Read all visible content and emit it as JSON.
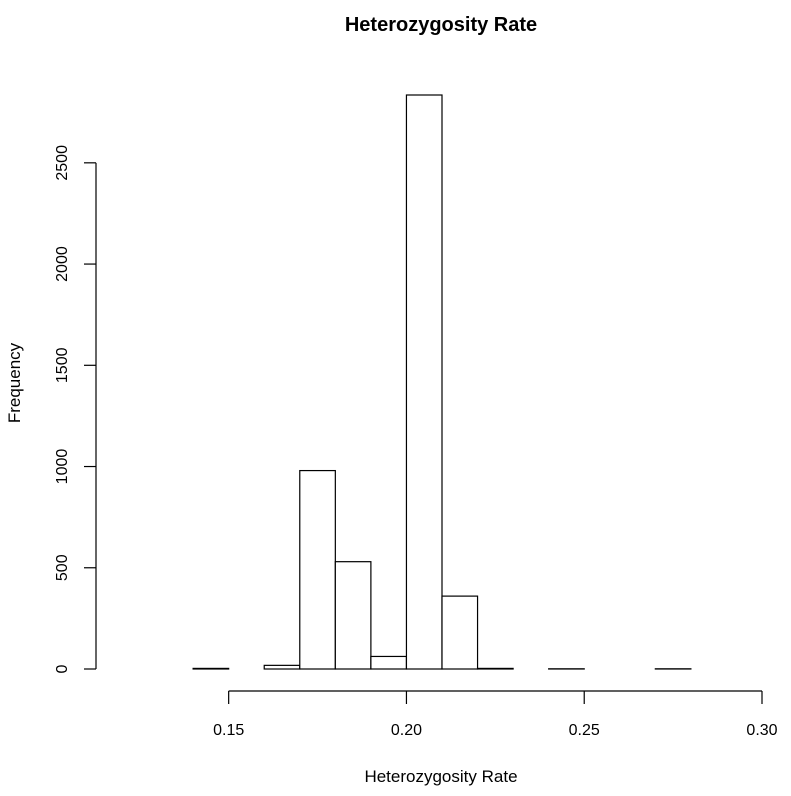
{
  "chart_data": {
    "type": "bar",
    "title": "Heterozygosity Rate",
    "xlabel": "Heterozygosity Rate",
    "ylabel": "Frequency",
    "bin_width": 0.01,
    "bins": [
      {
        "start": 0.12,
        "value": 0
      },
      {
        "start": 0.13,
        "value": 0
      },
      {
        "start": 0.14,
        "value": 3
      },
      {
        "start": 0.15,
        "value": 0
      },
      {
        "start": 0.16,
        "value": 18
      },
      {
        "start": 0.17,
        "value": 980
      },
      {
        "start": 0.18,
        "value": 530
      },
      {
        "start": 0.19,
        "value": 62
      },
      {
        "start": 0.2,
        "value": 2835
      },
      {
        "start": 0.21,
        "value": 360
      },
      {
        "start": 0.22,
        "value": 3
      },
      {
        "start": 0.23,
        "value": 0
      },
      {
        "start": 0.24,
        "value": 1
      },
      {
        "start": 0.25,
        "value": 0
      },
      {
        "start": 0.26,
        "value": 0
      },
      {
        "start": 0.27,
        "value": 1
      },
      {
        "start": 0.28,
        "value": 0
      },
      {
        "start": 0.29,
        "value": 0
      }
    ],
    "x_ticks": [
      "0.15",
      "0.20",
      "0.25",
      "0.30"
    ],
    "y_ticks": [
      "0",
      "500",
      "1000",
      "1500",
      "2000",
      "2500"
    ],
    "xlim": [
      0.12,
      0.3
    ],
    "ylim": [
      0,
      2835
    ],
    "grid": false
  }
}
